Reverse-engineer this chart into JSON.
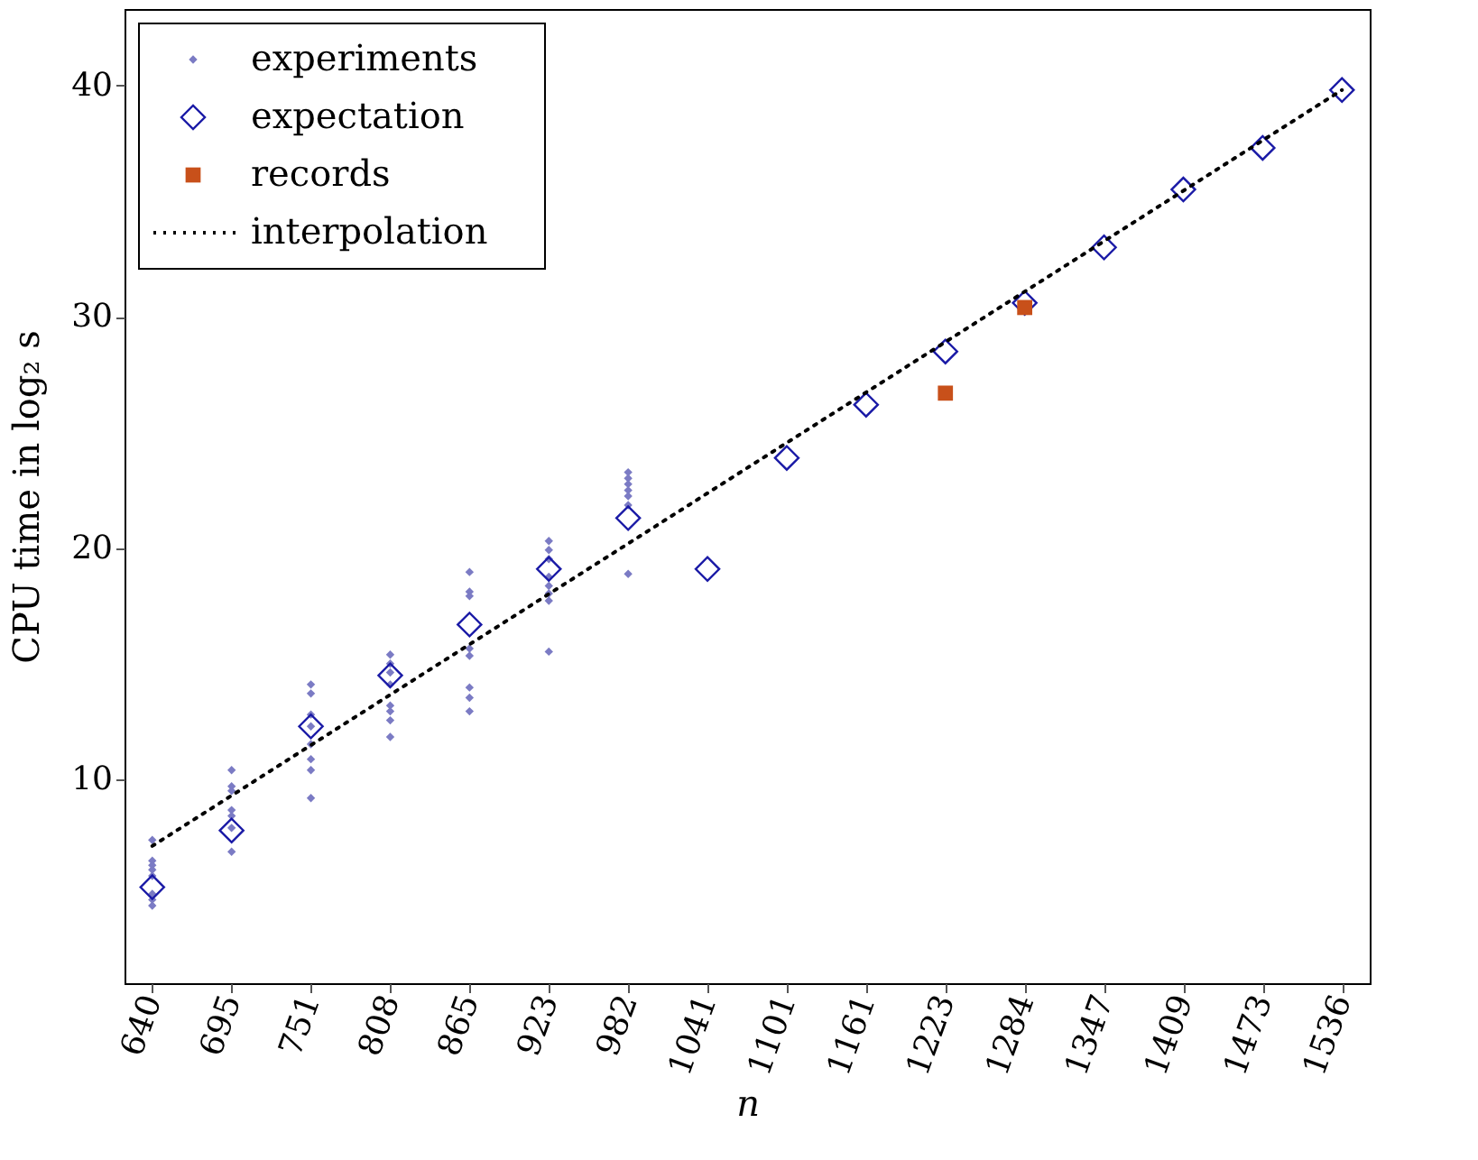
{
  "chart_data": {
    "type": "scatter",
    "categories": [
      "640",
      "695",
      "751",
      "808",
      "865",
      "923",
      "982",
      "1041",
      "1101",
      "1161",
      "1223",
      "1284",
      "1347",
      "1409",
      "1473",
      "1536"
    ],
    "xlabel": "n",
    "ylabel": "CPU time in log₂ s",
    "ylim": [
      1.2,
      43.3
    ],
    "yticks": [
      10,
      20,
      30,
      40
    ],
    "grid": false,
    "legend": "top left",
    "series": [
      {
        "name": "experiments",
        "marker": "diamond",
        "color": "#7b7bc4",
        "x": [
          "640",
          "640",
          "640",
          "640",
          "640",
          "640",
          "640",
          "640",
          "695",
          "695",
          "695",
          "695",
          "695",
          "695",
          "695",
          "751",
          "751",
          "751",
          "751",
          "751",
          "751",
          "751",
          "751",
          "808",
          "808",
          "808",
          "808",
          "808",
          "808",
          "808",
          "808",
          "865",
          "865",
          "865",
          "865",
          "865",
          "865",
          "865",
          "865",
          "923",
          "923",
          "923",
          "923",
          "923",
          "923",
          "923",
          "923",
          "982",
          "982",
          "982",
          "982",
          "982",
          "982",
          "982"
        ],
        "values": [
          7.39,
          6.49,
          6.3,
          6.1,
          5.84,
          4.55,
          4.81,
          5.06,
          10.41,
          9.71,
          9.51,
          8.68,
          8.43,
          7.91,
          6.88,
          14.11,
          13.72,
          12.81,
          12.3,
          11.53,
          10.88,
          10.41,
          9.2,
          15.4,
          15.01,
          14.63,
          14.11,
          13.2,
          12.95,
          12.56,
          11.84,
          18.97,
          18.12,
          17.93,
          15.66,
          15.35,
          13.98,
          13.54,
          12.95,
          20.31,
          19.92,
          19.53,
          18.76,
          18.37,
          18.04,
          17.73,
          15.53,
          23.28,
          23.02,
          22.77,
          22.5,
          22.25,
          21.86,
          18.89
        ]
      },
      {
        "name": "expectation",
        "marker": "diamond_open",
        "color": "#1a1aa6",
        "values": [
          5.35,
          7.8,
          12.3,
          14.5,
          16.7,
          19.1,
          21.3,
          19.1,
          23.9,
          26.2,
          28.5,
          30.6,
          33.0,
          35.5,
          37.3,
          39.8
        ]
      },
      {
        "name": "records",
        "marker": "square",
        "color": "#c8501a",
        "values": [
          null,
          null,
          null,
          null,
          null,
          null,
          null,
          null,
          null,
          null,
          26.7,
          30.4,
          null,
          null,
          null,
          null
        ]
      },
      {
        "name": "interpolation",
        "type": "line",
        "line_style": "dotted",
        "marker": "none",
        "color": "#000000",
        "values": [
          7.13,
          null,
          null,
          null,
          null,
          null,
          null,
          null,
          null,
          null,
          null,
          null,
          null,
          null,
          null,
          39.8
        ]
      }
    ]
  }
}
